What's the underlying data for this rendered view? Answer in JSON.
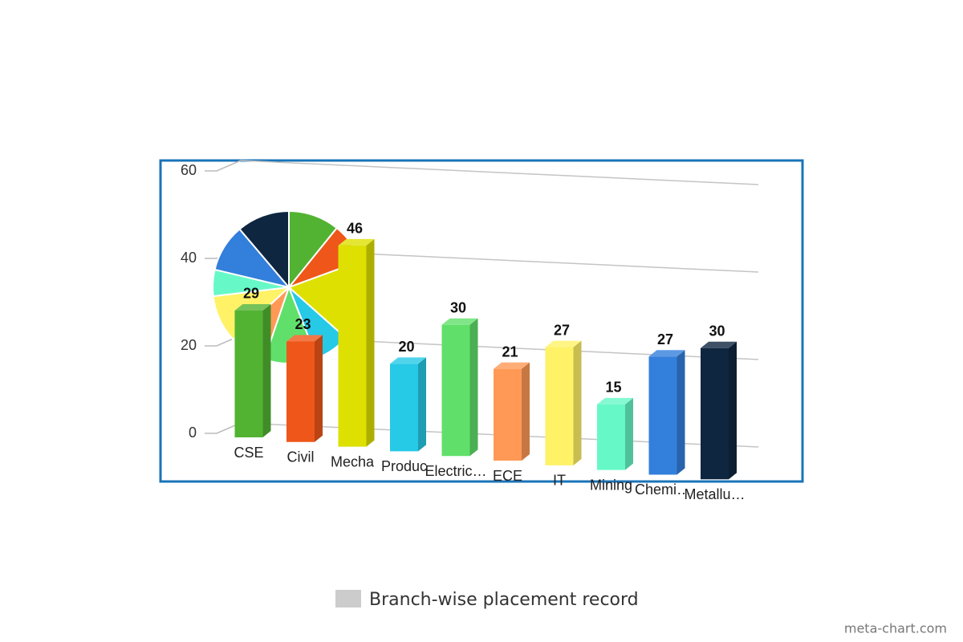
{
  "chart_data": {
    "type": "bar3d",
    "categories": [
      "CSE",
      "Civil",
      "Mecha",
      "Produc",
      "Electric…",
      "ECE",
      "IT",
      "Mining",
      "Chemi…",
      "Metallu…"
    ],
    "values": [
      29,
      23,
      46,
      20,
      30,
      21,
      27,
      15,
      27,
      30
    ],
    "colors": [
      "#52b332",
      "#ee5719",
      "#dde000",
      "#26c9e6",
      "#60e06a",
      "#ff9955",
      "#fff266",
      "#66f9c7",
      "#337fdc",
      "#0f2640"
    ],
    "ylim": [
      0,
      60
    ],
    "yticks": [
      0,
      20,
      40,
      60
    ],
    "grid": true,
    "legend": {
      "label": "Branch-wise placement record",
      "color": "#cccccc"
    },
    "watermark": "meta-chart.com"
  }
}
